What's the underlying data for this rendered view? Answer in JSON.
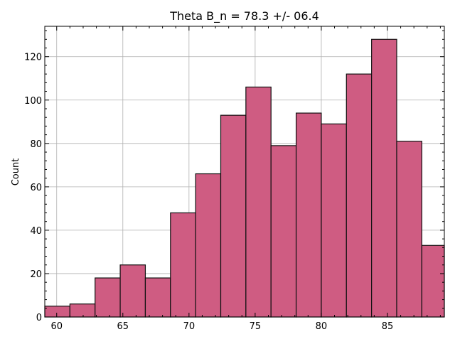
{
  "chart_data": {
    "type": "bar",
    "title": "Theta B_n = 78.3 +/- 06.4",
    "xlabel": "",
    "ylabel": "Count",
    "xlim": [
      59.1,
      89.3
    ],
    "ylim": [
      0,
      134
    ],
    "xticks": [
      60,
      65,
      70,
      75,
      80,
      85
    ],
    "yticks": [
      0,
      20,
      40,
      60,
      80,
      100,
      120
    ],
    "grid": true,
    "bar_color": "#cf5c82",
    "edge_color": "#111111",
    "bins": [
      {
        "x0": 59.1,
        "x1": 61.0,
        "value": 5
      },
      {
        "x0": 61.0,
        "x1": 62.9,
        "value": 6
      },
      {
        "x0": 62.9,
        "x1": 64.8,
        "value": 18
      },
      {
        "x0": 64.8,
        "x1": 66.7,
        "value": 24
      },
      {
        "x0": 66.7,
        "x1": 68.6,
        "value": 18
      },
      {
        "x0": 68.6,
        "x1": 70.5,
        "value": 48
      },
      {
        "x0": 70.5,
        "x1": 72.4,
        "value": 66
      },
      {
        "x0": 72.4,
        "x1": 74.3,
        "value": 93
      },
      {
        "x0": 74.3,
        "x1": 76.2,
        "value": 106
      },
      {
        "x0": 76.2,
        "x1": 78.1,
        "value": 79
      },
      {
        "x0": 78.1,
        "x1": 80.0,
        "value": 94
      },
      {
        "x0": 80.0,
        "x1": 81.9,
        "value": 89
      },
      {
        "x0": 81.9,
        "x1": 83.8,
        "value": 112
      },
      {
        "x0": 83.8,
        "x1": 85.7,
        "value": 128
      },
      {
        "x0": 85.7,
        "x1": 87.6,
        "value": 81
      },
      {
        "x0": 87.6,
        "x1": 89.5,
        "value": 33
      }
    ]
  }
}
